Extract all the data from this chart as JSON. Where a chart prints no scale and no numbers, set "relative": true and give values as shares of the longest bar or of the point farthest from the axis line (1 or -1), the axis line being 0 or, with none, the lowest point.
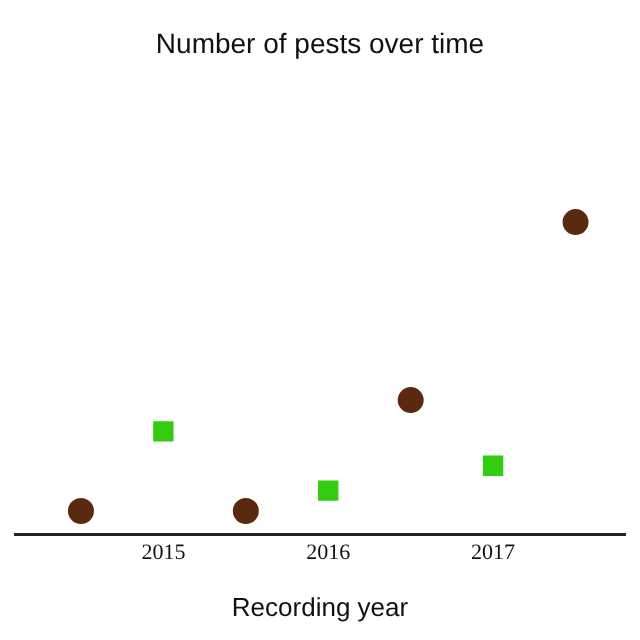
{
  "chart_data": {
    "type": "scatter",
    "title": "Number of pests over time",
    "xlabel": "Recording year",
    "relative": true,
    "xlim": [
      2014.1,
      2017.8
    ],
    "xticks": [
      2015,
      2016,
      2017
    ],
    "grid": false,
    "legend": false,
    "series": [
      {
        "color": "#5a2a10",
        "marker": "circle",
        "x": [
          2014.5,
          2015.5,
          2016.5,
          2017.5
        ],
        "values": [
          0.075,
          0.075,
          0.43,
          1
        ]
      },
      {
        "color": "#33cc11",
        "marker": "square",
        "x": [
          2015,
          2016,
          2017
        ],
        "values": [
          0.33,
          0.14,
          0.22
        ]
      }
    ]
  }
}
